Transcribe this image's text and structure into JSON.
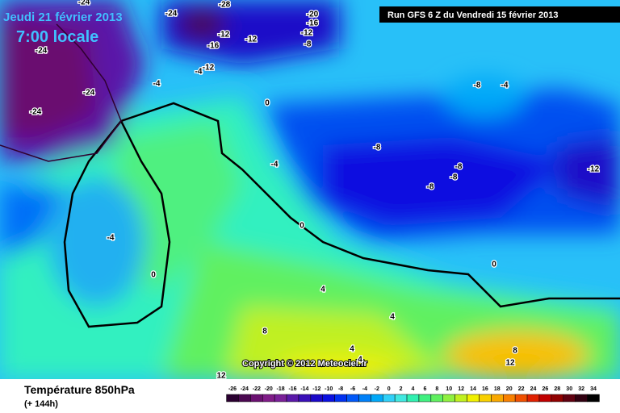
{
  "header": {
    "date": "Jeudi 21 février 2013",
    "time": "7:00 locale",
    "run": "Run GFS 6 Z du Vendredi 15 février 2013"
  },
  "map": {
    "copyright": "Copyright © 2012 Meteociel.fr",
    "contour_labels": [
      -28,
      -24,
      -24,
      -20,
      -16,
      -12,
      -12,
      -12,
      -16,
      -8,
      -24,
      -4,
      -12,
      -4,
      -24,
      -24,
      0,
      -8,
      -4,
      -8,
      -8,
      -8,
      -8,
      -12,
      -4,
      0,
      -4,
      0,
      0,
      4,
      4,
      4,
      4,
      8,
      8,
      12,
      12
    ]
  },
  "footer": {
    "title": "Température 850hPa",
    "subtitle": "(+ 144h)"
  },
  "legend": {
    "ticks": [
      -26,
      -24,
      -22,
      -20,
      -18,
      -16,
      -14,
      -12,
      -10,
      -8,
      -6,
      -4,
      -2,
      0,
      2,
      4,
      6,
      8,
      10,
      12,
      14,
      16,
      18,
      20,
      22,
      24,
      26,
      28,
      30,
      32,
      34
    ],
    "colors": [
      "#2a0030",
      "#4a0850",
      "#6a1070",
      "#801c88",
      "#7a2098",
      "#5a18a8",
      "#3a10b8",
      "#1a08c8",
      "#0a10e0",
      "#0030f0",
      "#0058f8",
      "#0080f8",
      "#00a8f8",
      "#30d0f8",
      "#40e8e0",
      "#30f0b0",
      "#40f080",
      "#60f060",
      "#90f040",
      "#c0f020",
      "#f0f000",
      "#f8d000",
      "#f8a800",
      "#f88000",
      "#f05000",
      "#e02000",
      "#c00000",
      "#900000",
      "#600010",
      "#300010",
      "#000000"
    ]
  }
}
